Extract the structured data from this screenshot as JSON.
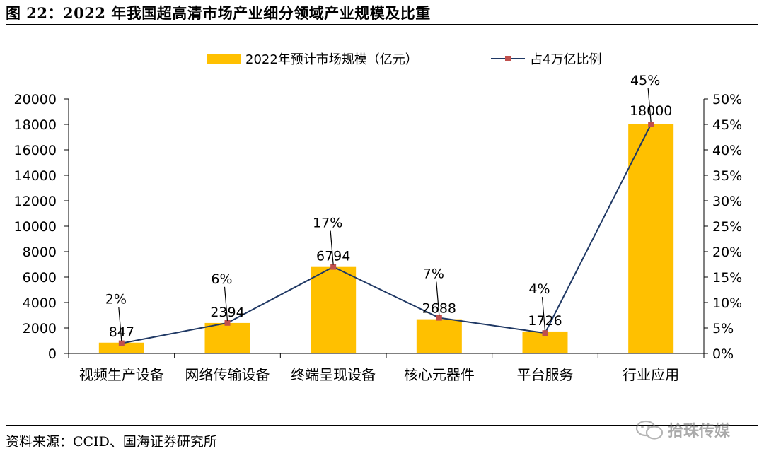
{
  "title": "图 22：2022 年我国超高清市场产业细分领域产业规模及比重",
  "source": "资料来源：CCID、国海证券研究所",
  "watermark": "拾珠传媒",
  "colors": {
    "bar": "#FFC000",
    "line": "#1F3864",
    "marker": "#C0504D"
  },
  "chart_data": {
    "type": "bar",
    "categories": [
      "视频生产设备",
      "网络传输设备",
      "终端呈现设备",
      "核心元器件",
      "平台服务",
      "行业应用"
    ],
    "series": [
      {
        "name": "2022年预计市场规模（亿元）",
        "type": "bar",
        "axis": "left",
        "values": [
          847,
          2394,
          6794,
          2688,
          1726,
          18000
        ],
        "labels": [
          "847",
          "2394",
          "6794",
          "2688",
          "1726",
          "18000"
        ]
      },
      {
        "name": "占4万亿比例",
        "type": "line",
        "axis": "right",
        "values": [
          2,
          6,
          17,
          7,
          4,
          45
        ],
        "labels": [
          "2%",
          "6%",
          "17%",
          "7%",
          "4%",
          "45%"
        ]
      }
    ],
    "left_axis": {
      "min": 0,
      "max": 20000,
      "step": 2000,
      "ticks": [
        "0",
        "2000",
        "4000",
        "6000",
        "8000",
        "10000",
        "12000",
        "14000",
        "16000",
        "18000",
        "20000"
      ]
    },
    "right_axis": {
      "min": 0,
      "max": 50,
      "step": 5,
      "ticks": [
        "0%",
        "5%",
        "10%",
        "15%",
        "20%",
        "25%",
        "30%",
        "35%",
        "40%",
        "45%",
        "50%"
      ]
    },
    "legend": {
      "placement": "top-center"
    },
    "grid": false
  }
}
